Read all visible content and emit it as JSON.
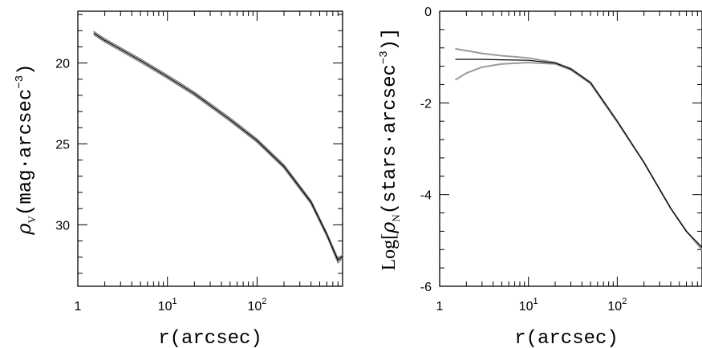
{
  "chart_data": [
    {
      "type": "line",
      "x_scale": "log",
      "xlim": [
        1,
        900
      ],
      "ylim": [
        33.8,
        16.8
      ],
      "y_inverted": true,
      "xlabel": "r(arcsec)",
      "ylabel": "ρV(mag·arcsec⁻³)",
      "ylabel_parts": {
        "rho": "ρ",
        "sub": "V",
        "main": "(mag·arcsec",
        "sup": "−3",
        "close": ")"
      },
      "x_ticks": [
        {
          "value": 1,
          "label": "1"
        },
        {
          "value": 10,
          "label": "10",
          "sup": "1"
        },
        {
          "value": 100,
          "label": "10",
          "sup": "2"
        }
      ],
      "y_ticks": [
        {
          "value": 20,
          "label": "20"
        },
        {
          "value": 25,
          "label": "25"
        },
        {
          "value": 30,
          "label": "30"
        }
      ],
      "series": [
        {
          "style": "envelope",
          "color": "#888888",
          "x": [
            1.5,
            2,
            3,
            5,
            10,
            20,
            50,
            100,
            200,
            400,
            600,
            800,
            900
          ],
          "y_low": [
            18.05,
            18.5,
            19.05,
            19.75,
            20.75,
            21.8,
            23.4,
            24.7,
            26.3,
            28.5,
            30.5,
            32.1,
            31.85
          ],
          "y_high": [
            18.25,
            18.7,
            19.25,
            19.95,
            20.95,
            22.0,
            23.6,
            24.9,
            26.5,
            28.7,
            30.7,
            32.35,
            32.05
          ]
        },
        {
          "style": "line",
          "color": "#000000",
          "x": [
            1.5,
            2,
            3,
            5,
            10,
            20,
            50,
            100,
            200,
            400,
            600,
            800,
            900
          ],
          "y": [
            18.15,
            18.6,
            19.15,
            19.85,
            20.85,
            21.9,
            23.5,
            24.8,
            26.4,
            28.6,
            30.6,
            32.2,
            31.95
          ]
        }
      ]
    },
    {
      "type": "line",
      "x_scale": "log",
      "xlim": [
        1,
        900
      ],
      "ylim": [
        -6,
        0
      ],
      "xlabel": "r(arcsec)",
      "ylabel": "Log[ρN(stars·arcsec⁻³)]",
      "ylabel_parts": {
        "pre": "Log[",
        "rho": "ρ",
        "sub": "N",
        "main": "(stars·arcsec",
        "sup": "−3",
        "close": ")]"
      },
      "x_ticks": [
        {
          "value": 1,
          "label": "1"
        },
        {
          "value": 10,
          "label": "10",
          "sup": "1"
        },
        {
          "value": 100,
          "label": "10",
          "sup": "2"
        }
      ],
      "y_ticks": [
        {
          "value": 0,
          "label": "0"
        },
        {
          "value": -2,
          "label": "-2"
        },
        {
          "value": -4,
          "label": "-4"
        },
        {
          "value": -6,
          "label": "-6"
        }
      ],
      "series": [
        {
          "style": "line",
          "color": "#9a9a9a",
          "x": [
            1.5,
            2,
            3,
            5,
            10,
            20,
            30,
            50,
            100,
            200,
            400,
            600,
            900
          ],
          "y": [
            -0.82,
            -0.86,
            -0.92,
            -0.97,
            -1.02,
            -1.12,
            -1.25,
            -1.55,
            -2.4,
            -3.3,
            -4.3,
            -4.8,
            -5.2
          ]
        },
        {
          "style": "line",
          "color": "#9a9a9a",
          "x": [
            1.5,
            2,
            3,
            5,
            10,
            20,
            30,
            50,
            100,
            200,
            400,
            600,
            900
          ],
          "y": [
            -1.5,
            -1.35,
            -1.22,
            -1.15,
            -1.12,
            -1.15,
            -1.28,
            -1.58,
            -2.42,
            -3.3,
            -4.3,
            -4.8,
            -5.2
          ]
        },
        {
          "style": "line",
          "color": "#000000",
          "x": [
            1.5,
            2,
            3,
            5,
            10,
            20,
            30,
            50,
            100,
            200,
            400,
            600,
            900
          ],
          "y": [
            -1.05,
            -1.05,
            -1.05,
            -1.06,
            -1.07,
            -1.13,
            -1.26,
            -1.56,
            -2.4,
            -3.3,
            -4.3,
            -4.8,
            -5.15
          ]
        }
      ]
    }
  ]
}
